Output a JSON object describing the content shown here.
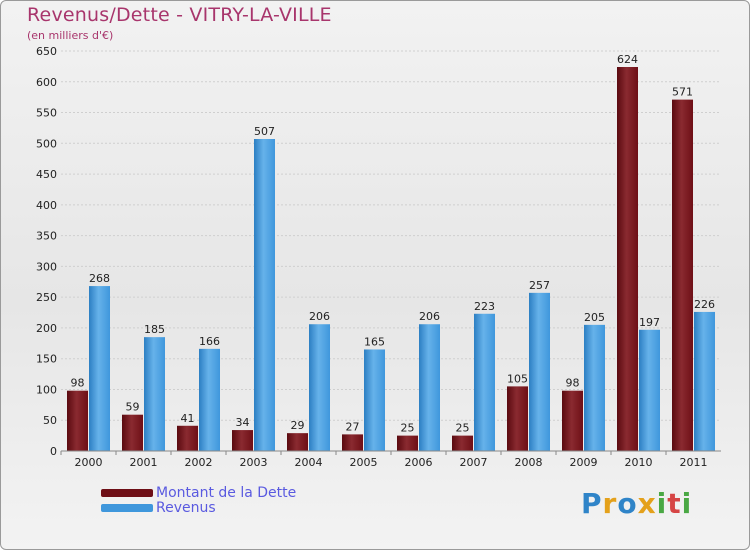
{
  "chart_data": {
    "type": "bar",
    "title": "Revenus/Dette - VITRY-LA-VILLE",
    "subtitle": "(en milliers d'€)",
    "xlabel": "",
    "ylabel": "",
    "ylim": [
      0,
      650
    ],
    "yticks": [
      0,
      50,
      100,
      150,
      200,
      250,
      300,
      350,
      400,
      450,
      500,
      550,
      600,
      650
    ],
    "grid": true,
    "categories": [
      "2000",
      "2001",
      "2002",
      "2003",
      "2004",
      "2005",
      "2006",
      "2007",
      "2008",
      "2009",
      "2010",
      "2011"
    ],
    "series": [
      {
        "name": "Montant de la Dette",
        "color": "#6e0f16",
        "values": [
          98,
          59,
          41,
          34,
          29,
          27,
          25,
          25,
          105,
          98,
          624,
          571
        ]
      },
      {
        "name": "Revenus",
        "color": "#3f97dc",
        "values": [
          268,
          185,
          166,
          507,
          206,
          165,
          206,
          223,
          257,
          205,
          197,
          226
        ]
      }
    ],
    "legend_position": "bottom-left"
  },
  "logo": {
    "letters": [
      "P",
      "r",
      "o",
      "x",
      "i",
      "t",
      "i"
    ],
    "colors": [
      "#2f84c8",
      "#e4a11b",
      "#2f84c8",
      "#e4a11b",
      "#4aa844",
      "#d64545",
      "#4aa844"
    ]
  }
}
